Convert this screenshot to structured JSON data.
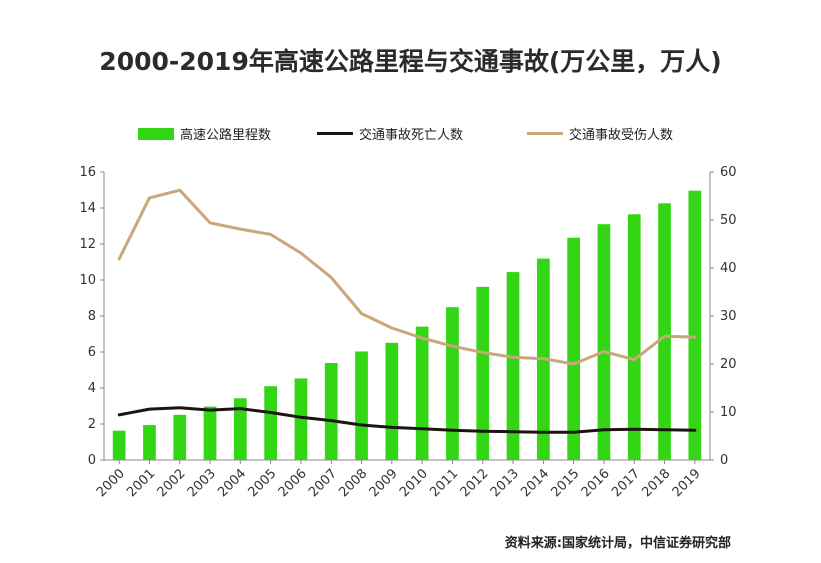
{
  "title": "2000-2019年高速公路里程与交通事故(万公里，万人)",
  "source": "资料来源:国家统计局，中信证券研究部",
  "colors": {
    "bar": "#33d614",
    "deaths": "#1d1412",
    "injured": "#c9a77a"
  },
  "chart_data": {
    "type": "bar",
    "categories": [
      "2000",
      "2001",
      "2002",
      "2003",
      "2004",
      "2005",
      "2006",
      "2007",
      "2008",
      "2009",
      "2010",
      "2011",
      "2012",
      "2013",
      "2014",
      "2015",
      "2016",
      "2017",
      "2018",
      "2019"
    ],
    "series": [
      {
        "name": "高速公路里程数",
        "type": "bar",
        "axis": "left",
        "values": [
          1.63,
          1.94,
          2.51,
          2.97,
          3.43,
          4.1,
          4.53,
          5.39,
          6.03,
          6.51,
          7.41,
          8.49,
          9.62,
          10.44,
          11.19,
          12.35,
          13.1,
          13.65,
          14.26,
          14.96
        ]
      },
      {
        "name": "交通事故死亡人数",
        "type": "line",
        "axis": "right",
        "values": [
          9.4,
          10.6,
          10.9,
          10.4,
          10.7,
          9.9,
          8.9,
          8.2,
          7.3,
          6.8,
          6.5,
          6.2,
          6.0,
          5.9,
          5.8,
          5.8,
          6.3,
          6.4,
          6.3,
          6.2
        ]
      },
      {
        "name": "交通事故受伤人数",
        "type": "line",
        "axis": "right",
        "values": [
          41.9,
          54.6,
          56.2,
          49.4,
          48.1,
          47.0,
          43.1,
          38.0,
          30.5,
          27.5,
          25.4,
          23.7,
          22.4,
          21.4,
          21.1,
          20.0,
          22.6,
          20.9,
          25.8,
          25.6
        ]
      }
    ],
    "y_left": {
      "min": 0,
      "max": 16,
      "ticks": [
        "0",
        "2",
        "4",
        "6",
        "8",
        "10",
        "12",
        "14",
        "16"
      ]
    },
    "y_right": {
      "min": 0,
      "max": 60,
      "ticks": [
        "0",
        "10",
        "20",
        "30",
        "40",
        "50",
        "60"
      ]
    },
    "grid": false,
    "legend": "top"
  }
}
